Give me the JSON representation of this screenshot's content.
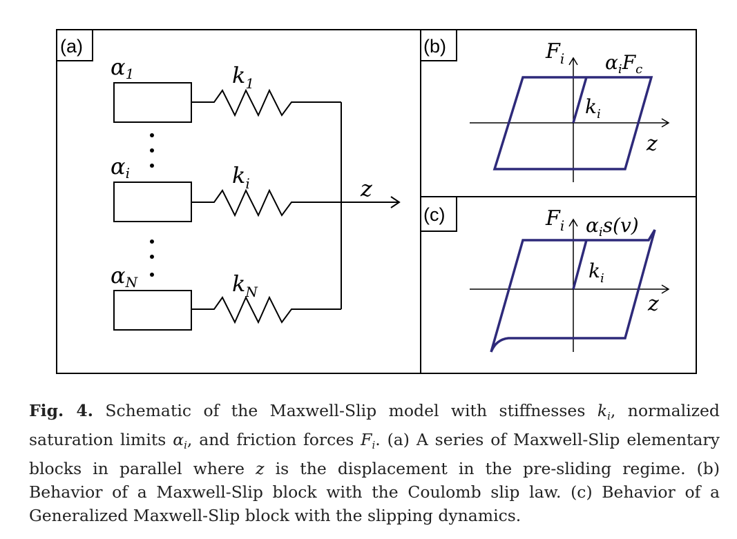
{
  "figure": {
    "panel_a": {
      "tag": "(a)",
      "labels": {
        "alpha": "α",
        "alpha_1_sub": "1",
        "alpha_i_sub": "i",
        "alpha_N_sub": "N",
        "k": "k",
        "k_1_sub": "1",
        "k_i_sub": "i",
        "k_N_sub": "N",
        "z": "z"
      }
    },
    "panel_b": {
      "tag": "(b)",
      "labels": {
        "F": "F",
        "F_sub": "i",
        "alpha": "α",
        "alpha_sub": "i",
        "Fc": "F",
        "Fc_sub": "c",
        "k": "k",
        "k_sub": "i",
        "z": "z"
      }
    },
    "panel_c": {
      "tag": "(c)",
      "labels": {
        "F": "F",
        "F_sub": "i",
        "alpha": "α",
        "alpha_sub": "i",
        "s_of_v": "s(v)",
        "k": "k",
        "k_sub": "i",
        "z": "z"
      }
    },
    "colors": {
      "loop": "#2e2a7a",
      "line": "#000000"
    }
  },
  "caption": {
    "label": "Fig. 4.",
    "part1": "Schematic of the Maxwell-Slip model with stiffnesses",
    "k": "k",
    "k_sub": "i",
    "part2": ", normalized saturation limits",
    "alpha": "α",
    "alpha_sub": "i",
    "part3": ", and friction forces",
    "F": "F",
    "F_sub": "i",
    "part4": ". (a) A series of Maxwell-Slip elementary blocks in parallel where",
    "z": "z",
    "part5": "is the displacement in the pre-sliding regime. (b) Behavior of a Maxwell-Slip block with the Coulomb slip law. (c) Behavior of a Generalized Maxwell-Slip block with the slipping dynamics."
  }
}
